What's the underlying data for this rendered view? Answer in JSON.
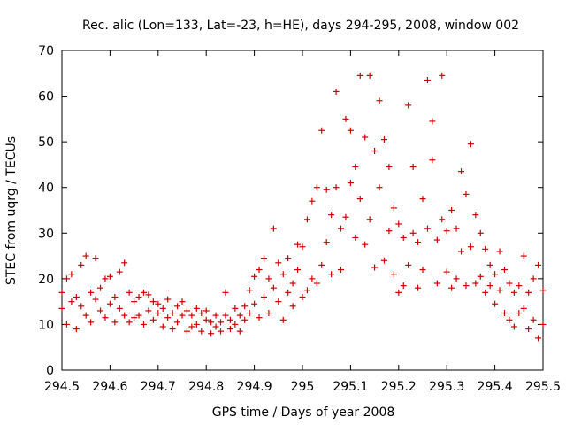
{
  "chart_data": {
    "type": "scatter",
    "title": "Rec. alic (Lon=133, Lat=-23, h=HE), days 294-295, 2008, window 002",
    "xlabel": "GPS time / Days of year 2008",
    "ylabel": "STEC from uqrg / TECUs",
    "xlim": [
      294.5,
      295.5
    ],
    "ylim": [
      0,
      70
    ],
    "xticks": [
      294.5,
      294.6,
      294.7,
      294.8,
      294.9,
      295,
      295.1,
      295.2,
      295.3,
      295.4,
      295.5
    ],
    "xtick_labels": [
      "294.5",
      "294.6",
      "294.7",
      "294.8",
      "294.9",
      "295",
      "295.1",
      "295.2",
      "295.3",
      "295.4",
      "295.5"
    ],
    "yticks": [
      0,
      10,
      20,
      30,
      40,
      50,
      60,
      70
    ],
    "ytick_labels": [
      "0",
      "10",
      "20",
      "30",
      "40",
      "50",
      "60",
      "70"
    ],
    "marker": "+",
    "color": "#cc0000",
    "grid": false,
    "series": [
      {
        "name": "",
        "points": [
          [
            294.5,
            17.0
          ],
          [
            294.5,
            13.5
          ],
          [
            294.51,
            20.0
          ],
          [
            294.51,
            10.0
          ],
          [
            294.52,
            21.0
          ],
          [
            294.52,
            15.0
          ],
          [
            294.53,
            9.0
          ],
          [
            294.53,
            16.0
          ],
          [
            294.54,
            23.0
          ],
          [
            294.54,
            14.0
          ],
          [
            294.55,
            25.0
          ],
          [
            294.55,
            12.0
          ],
          [
            294.56,
            17.0
          ],
          [
            294.56,
            10.5
          ],
          [
            294.57,
            24.5
          ],
          [
            294.57,
            15.5
          ],
          [
            294.58,
            18.0
          ],
          [
            294.58,
            13.0
          ],
          [
            294.59,
            20.0
          ],
          [
            294.59,
            11.5
          ],
          [
            294.6,
            20.5
          ],
          [
            294.6,
            14.5
          ],
          [
            294.61,
            16.0
          ],
          [
            294.61,
            10.5
          ],
          [
            294.62,
            21.5
          ],
          [
            294.62,
            13.5
          ],
          [
            294.63,
            23.5
          ],
          [
            294.63,
            12.0
          ],
          [
            294.64,
            17.0
          ],
          [
            294.64,
            10.5
          ],
          [
            294.65,
            15.0
          ],
          [
            294.65,
            11.5
          ],
          [
            294.66,
            16.0
          ],
          [
            294.66,
            12.0
          ],
          [
            294.67,
            17.0
          ],
          [
            294.67,
            10.0
          ],
          [
            294.68,
            16.5
          ],
          [
            294.68,
            13.0
          ],
          [
            294.69,
            15.0
          ],
          [
            294.69,
            11.0
          ],
          [
            294.7,
            14.5
          ],
          [
            294.7,
            12.5
          ],
          [
            294.71,
            13.5
          ],
          [
            294.71,
            9.5
          ],
          [
            294.72,
            15.5
          ],
          [
            294.72,
            11.5
          ],
          [
            294.73,
            12.5
          ],
          [
            294.73,
            9.0
          ],
          [
            294.74,
            14.0
          ],
          [
            294.74,
            10.5
          ],
          [
            294.75,
            15.0
          ],
          [
            294.75,
            12.0
          ],
          [
            294.76,
            13.0
          ],
          [
            294.76,
            8.5
          ],
          [
            294.77,
            12.0
          ],
          [
            294.77,
            9.5
          ],
          [
            294.78,
            13.5
          ],
          [
            294.78,
            10.0
          ],
          [
            294.79,
            12.5
          ],
          [
            294.79,
            8.5
          ],
          [
            294.8,
            11.0
          ],
          [
            294.8,
            13.0
          ],
          [
            294.81,
            10.5
          ],
          [
            294.81,
            8.0
          ],
          [
            294.82,
            12.0
          ],
          [
            294.82,
            9.5
          ],
          [
            294.83,
            10.5
          ],
          [
            294.83,
            8.5
          ],
          [
            294.84,
            17.0
          ],
          [
            294.84,
            12.0
          ],
          [
            294.85,
            11.0
          ],
          [
            294.85,
            9.0
          ],
          [
            294.86,
            13.5
          ],
          [
            294.86,
            10.0
          ],
          [
            294.87,
            12.0
          ],
          [
            294.87,
            8.5
          ],
          [
            294.88,
            14.0
          ],
          [
            294.88,
            11.0
          ],
          [
            294.89,
            17.5
          ],
          [
            294.89,
            12.5
          ],
          [
            294.9,
            20.5
          ],
          [
            294.9,
            14.5
          ],
          [
            294.91,
            22.0
          ],
          [
            294.91,
            11.5
          ],
          [
            294.92,
            24.5
          ],
          [
            294.92,
            16.0
          ],
          [
            294.93,
            20.0
          ],
          [
            294.93,
            12.5
          ],
          [
            294.94,
            31.0
          ],
          [
            294.94,
            18.0
          ],
          [
            294.95,
            23.5
          ],
          [
            294.95,
            15.0
          ],
          [
            294.96,
            21.0
          ],
          [
            294.96,
            11.0
          ],
          [
            294.97,
            24.5
          ],
          [
            294.97,
            17.0
          ],
          [
            294.98,
            19.0
          ],
          [
            294.98,
            14.0
          ],
          [
            294.99,
            27.5
          ],
          [
            294.99,
            22.0
          ],
          [
            295.0,
            27.0
          ],
          [
            295.0,
            16.0
          ],
          [
            295.01,
            33.0
          ],
          [
            295.01,
            17.5
          ],
          [
            295.02,
            37.0
          ],
          [
            295.02,
            20.0
          ],
          [
            295.03,
            40.0
          ],
          [
            295.03,
            19.0
          ],
          [
            295.04,
            52.5
          ],
          [
            295.04,
            23.0
          ],
          [
            295.05,
            39.5
          ],
          [
            295.05,
            28.0
          ],
          [
            295.06,
            34.0
          ],
          [
            295.06,
            21.0
          ],
          [
            295.07,
            61.0
          ],
          [
            295.07,
            40.0
          ],
          [
            295.08,
            31.0
          ],
          [
            295.08,
            22.0
          ],
          [
            295.09,
            55.0
          ],
          [
            295.09,
            33.5
          ],
          [
            295.1,
            52.5
          ],
          [
            295.1,
            41.0
          ],
          [
            295.11,
            44.5
          ],
          [
            295.11,
            29.0
          ],
          [
            295.12,
            64.5
          ],
          [
            295.12,
            37.5
          ],
          [
            295.13,
            51.0
          ],
          [
            295.13,
            27.5
          ],
          [
            295.14,
            64.5
          ],
          [
            295.14,
            33.0
          ],
          [
            295.15,
            48.0
          ],
          [
            295.15,
            22.5
          ],
          [
            295.16,
            59.0
          ],
          [
            295.16,
            40.0
          ],
          [
            295.17,
            50.5
          ],
          [
            295.17,
            24.0
          ],
          [
            295.18,
            44.5
          ],
          [
            295.18,
            30.5
          ],
          [
            295.19,
            35.5
          ],
          [
            295.19,
            21.0
          ],
          [
            295.2,
            32.0
          ],
          [
            295.2,
            17.0
          ],
          [
            295.21,
            29.0
          ],
          [
            295.21,
            18.5
          ],
          [
            295.22,
            58.0
          ],
          [
            295.22,
            23.0
          ],
          [
            295.23,
            44.5
          ],
          [
            295.23,
            30.0
          ],
          [
            295.24,
            28.0
          ],
          [
            295.24,
            18.0
          ],
          [
            295.25,
            37.5
          ],
          [
            295.25,
            22.0
          ],
          [
            295.26,
            63.5
          ],
          [
            295.26,
            31.0
          ],
          [
            295.27,
            54.5
          ],
          [
            295.27,
            46.0
          ],
          [
            295.28,
            28.5
          ],
          [
            295.28,
            19.0
          ],
          [
            295.29,
            64.5
          ],
          [
            295.29,
            33.0
          ],
          [
            295.3,
            30.5
          ],
          [
            295.3,
            21.5
          ],
          [
            295.31,
            35.0
          ],
          [
            295.31,
            18.0
          ],
          [
            295.32,
            31.0
          ],
          [
            295.32,
            20.0
          ],
          [
            295.33,
            43.5
          ],
          [
            295.33,
            26.0
          ],
          [
            295.34,
            38.5
          ],
          [
            295.34,
            18.5
          ],
          [
            295.35,
            49.5
          ],
          [
            295.35,
            27.0
          ],
          [
            295.36,
            34.0
          ],
          [
            295.36,
            19.0
          ],
          [
            295.37,
            30.0
          ],
          [
            295.37,
            20.5
          ],
          [
            295.38,
            26.5
          ],
          [
            295.38,
            17.0
          ],
          [
            295.39,
            23.0
          ],
          [
            295.39,
            18.5
          ],
          [
            295.4,
            21.0
          ],
          [
            295.4,
            14.5
          ],
          [
            295.41,
            26.0
          ],
          [
            295.41,
            17.5
          ],
          [
            295.42,
            22.0
          ],
          [
            295.42,
            12.5
          ],
          [
            295.43,
            19.0
          ],
          [
            295.43,
            11.0
          ],
          [
            295.44,
            17.0
          ],
          [
            295.44,
            9.5
          ],
          [
            295.45,
            18.5
          ],
          [
            295.45,
            12.5
          ],
          [
            295.46,
            25.0
          ],
          [
            295.46,
            13.5
          ],
          [
            295.47,
            17.0
          ],
          [
            295.47,
            9.0
          ],
          [
            295.48,
            20.0
          ],
          [
            295.48,
            11.0
          ],
          [
            295.49,
            23.0
          ],
          [
            295.49,
            7.0
          ],
          [
            295.5,
            17.5
          ],
          [
            295.5,
            10.0
          ]
        ]
      }
    ]
  }
}
